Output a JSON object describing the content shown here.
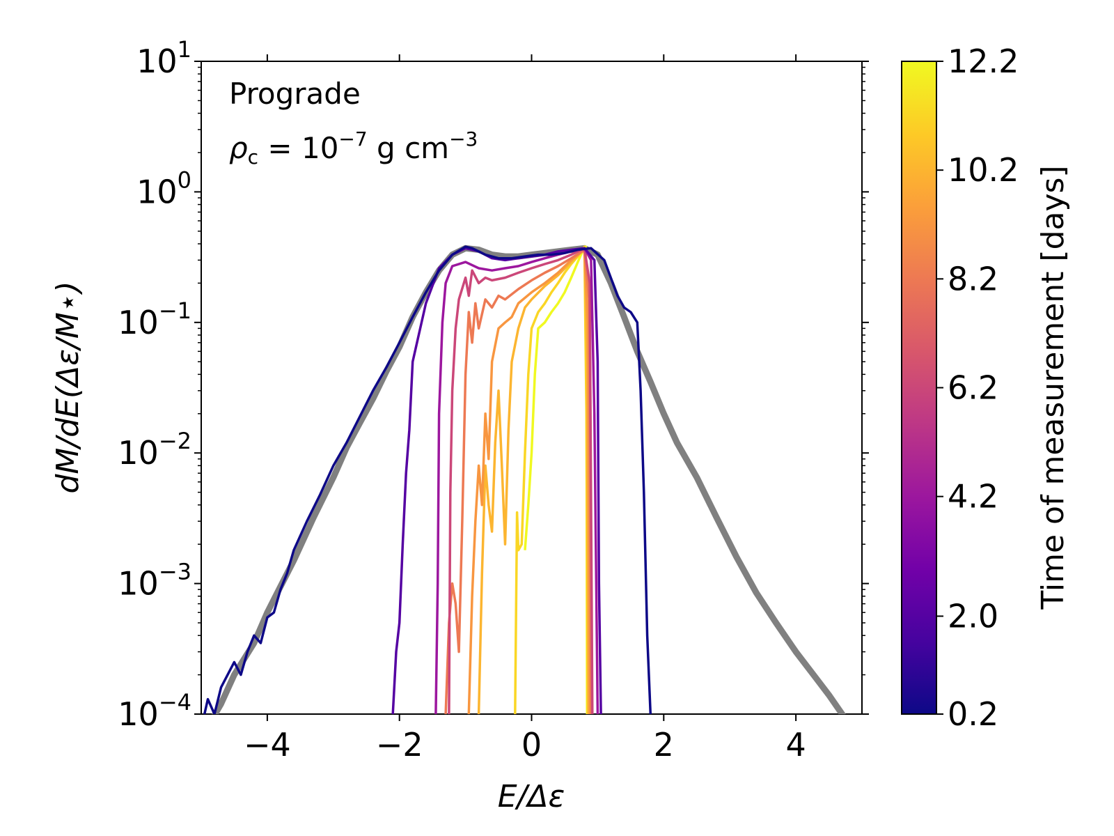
{
  "chart_data": {
    "type": "line",
    "xscale": "linear",
    "yscale": "log",
    "xlim": [
      -5,
      5
    ],
    "ylim": [
      0.0001,
      10
    ],
    "xlabel": "E/Δε",
    "ylabel": "dM/dE(Δε/M⋆)",
    "x_ticks": [
      -4,
      -2,
      0,
      2,
      4
    ],
    "x_tick_labels": [
      "−4",
      "−2",
      "0",
      "2",
      "4"
    ],
    "y_ticks": [
      {
        "exp": -4,
        "base": "10",
        "sup": "−4"
      },
      {
        "exp": -3,
        "base": "10",
        "sup": "−3"
      },
      {
        "exp": -2,
        "base": "10",
        "sup": "−2"
      },
      {
        "exp": -1,
        "base": "10",
        "sup": "−1"
      },
      {
        "exp": 0,
        "base": "10",
        "sup": "0"
      },
      {
        "exp": 1,
        "base": "10",
        "sup": "1"
      }
    ],
    "annotations": {
      "line1": "Prograde",
      "rho_symbol": "ρ",
      "rho_sub": "c",
      "rho_value": " = 10",
      "rho_exp": "−7",
      "rho_unit": " g cm",
      "rho_unit_exp": "−3"
    },
    "colorbar": {
      "label": "Time of measurement [days]",
      "min": 0.2,
      "max": 12.2,
      "ticks": [
        "0.2",
        "2.0",
        "4.2",
        "6.2",
        "8.2",
        "10.2",
        "12.2"
      ],
      "colormap": [
        "#0d0887",
        "#46039f",
        "#7201a8",
        "#9c179e",
        "#bd3786",
        "#d8576b",
        "#ed7953",
        "#fb9f3a",
        "#fdca26",
        "#f0f921"
      ]
    },
    "reference_series": {
      "name": "reference",
      "color": "#808080",
      "points": [
        [
          -4.9,
          8e-05
        ],
        [
          -4.7,
          0.00012
        ],
        [
          -4.5,
          0.0002
        ],
        [
          -4.2,
          0.00035
        ],
        [
          -4.0,
          0.0006
        ],
        [
          -3.8,
          0.00095
        ],
        [
          -3.6,
          0.0015
        ],
        [
          -3.3,
          0.0032
        ],
        [
          -3.0,
          0.0065
        ],
        [
          -2.8,
          0.011
        ],
        [
          -2.6,
          0.017
        ],
        [
          -2.4,
          0.026
        ],
        [
          -2.2,
          0.042
        ],
        [
          -2.0,
          0.065
        ],
        [
          -1.8,
          0.11
        ],
        [
          -1.6,
          0.17
        ],
        [
          -1.4,
          0.25
        ],
        [
          -1.2,
          0.33
        ],
        [
          -1.0,
          0.37
        ],
        [
          -0.8,
          0.36
        ],
        [
          -0.6,
          0.33
        ],
        [
          -0.4,
          0.32
        ],
        [
          -0.2,
          0.32
        ],
        [
          0.0,
          0.33
        ],
        [
          0.2,
          0.34
        ],
        [
          0.4,
          0.35
        ],
        [
          0.6,
          0.36
        ],
        [
          0.8,
          0.37
        ],
        [
          1.0,
          0.33
        ],
        [
          1.2,
          0.2
        ],
        [
          1.4,
          0.11
        ],
        [
          1.6,
          0.06
        ],
        [
          1.8,
          0.035
        ],
        [
          2.0,
          0.02
        ],
        [
          2.2,
          0.012
        ],
        [
          2.5,
          0.0065
        ],
        [
          2.8,
          0.0032
        ],
        [
          3.1,
          0.0016
        ],
        [
          3.4,
          0.00085
        ],
        [
          3.7,
          0.0005
        ],
        [
          4.0,
          0.0003
        ],
        [
          4.3,
          0.00019
        ],
        [
          4.5,
          0.00014
        ],
        [
          4.7,
          0.0001
        ],
        [
          4.8,
          8e-05
        ]
      ]
    },
    "series": [
      {
        "name": "0.2 days",
        "time": 0.2,
        "points": [
          [
            -4.95,
            0.0001
          ],
          [
            -4.9,
            0.00013
          ],
          [
            -4.8,
            0.0001
          ],
          [
            -4.7,
            0.00016
          ],
          [
            -4.5,
            0.00025
          ],
          [
            -4.4,
            0.0002
          ],
          [
            -4.3,
            0.0003
          ],
          [
            -4.2,
            0.0004
          ],
          [
            -4.1,
            0.00035
          ],
          [
            -4.0,
            0.00055
          ],
          [
            -3.9,
            0.0006
          ],
          [
            -3.8,
            0.0009
          ],
          [
            -3.7,
            0.0012
          ],
          [
            -3.6,
            0.0018
          ],
          [
            -3.4,
            0.003
          ],
          [
            -3.2,
            0.0048
          ],
          [
            -3.0,
            0.008
          ],
          [
            -2.8,
            0.012
          ],
          [
            -2.6,
            0.019
          ],
          [
            -2.4,
            0.03
          ],
          [
            -2.2,
            0.045
          ],
          [
            -2.0,
            0.07
          ],
          [
            -1.8,
            0.11
          ],
          [
            -1.6,
            0.17
          ],
          [
            -1.4,
            0.25
          ],
          [
            -1.2,
            0.33
          ],
          [
            -1.0,
            0.38
          ],
          [
            -0.9,
            0.37
          ],
          [
            -0.7,
            0.33
          ],
          [
            -0.5,
            0.31
          ],
          [
            -0.3,
            0.31
          ],
          [
            -0.1,
            0.32
          ],
          [
            0.1,
            0.33
          ],
          [
            0.3,
            0.33
          ],
          [
            0.5,
            0.34
          ],
          [
            0.7,
            0.36
          ],
          [
            0.9,
            0.37
          ],
          [
            1.1,
            0.3
          ],
          [
            1.3,
            0.16
          ],
          [
            1.4,
            0.13
          ],
          [
            1.5,
            0.12
          ],
          [
            1.6,
            0.1
          ],
          [
            1.65,
            0.03
          ],
          [
            1.7,
            0.005
          ],
          [
            1.75,
            0.0004
          ],
          [
            1.8,
            0.0001
          ]
        ]
      },
      {
        "name": "2.0 days",
        "time": 2.0,
        "points": [
          [
            -2.1,
            0.0001
          ],
          [
            -2.05,
            0.0003
          ],
          [
            -2.0,
            0.0005
          ],
          [
            -1.95,
            0.002
          ],
          [
            -1.9,
            0.007
          ],
          [
            -1.85,
            0.015
          ],
          [
            -1.8,
            0.05
          ],
          [
            -1.6,
            0.14
          ],
          [
            -1.4,
            0.26
          ],
          [
            -1.2,
            0.33
          ],
          [
            -1.0,
            0.37
          ],
          [
            -0.8,
            0.35
          ],
          [
            -0.6,
            0.31
          ],
          [
            -0.4,
            0.3
          ],
          [
            -0.2,
            0.31
          ],
          [
            0.0,
            0.32
          ],
          [
            0.2,
            0.33
          ],
          [
            0.4,
            0.35
          ],
          [
            0.6,
            0.36
          ],
          [
            0.8,
            0.37
          ],
          [
            0.95,
            0.3
          ],
          [
            1.0,
            0.05
          ],
          [
            1.02,
            0.001
          ],
          [
            1.05,
            0.0001
          ]
        ]
      },
      {
        "name": "4.2 days",
        "time": 4.2,
        "points": [
          [
            -1.45,
            0.0001
          ],
          [
            -1.42,
            0.001
          ],
          [
            -1.4,
            0.02
          ],
          [
            -1.35,
            0.1
          ],
          [
            -1.3,
            0.2
          ],
          [
            -1.2,
            0.27
          ],
          [
            -1.0,
            0.29
          ],
          [
            -0.8,
            0.26
          ],
          [
            -0.6,
            0.25
          ],
          [
            -0.4,
            0.26
          ],
          [
            -0.2,
            0.27
          ],
          [
            0.0,
            0.29
          ],
          [
            0.2,
            0.31
          ],
          [
            0.4,
            0.33
          ],
          [
            0.6,
            0.35
          ],
          [
            0.8,
            0.37
          ],
          [
            0.9,
            0.3
          ],
          [
            0.95,
            0.02
          ],
          [
            1.0,
            0.0001
          ]
        ]
      },
      {
        "name": "6.2 days",
        "time": 6.2,
        "points": [
          [
            -1.25,
            0.0001
          ],
          [
            -1.23,
            0.005
          ],
          [
            -1.2,
            0.03
          ],
          [
            -1.15,
            0.09
          ],
          [
            -1.1,
            0.15
          ],
          [
            -1.0,
            0.22
          ],
          [
            -0.95,
            0.16
          ],
          [
            -0.9,
            0.25
          ],
          [
            -0.8,
            0.2
          ],
          [
            -0.7,
            0.22
          ],
          [
            -0.6,
            0.21
          ],
          [
            -0.4,
            0.22
          ],
          [
            -0.2,
            0.24
          ],
          [
            0.0,
            0.26
          ],
          [
            0.2,
            0.28
          ],
          [
            0.4,
            0.3
          ],
          [
            0.6,
            0.33
          ],
          [
            0.8,
            0.37
          ],
          [
            0.88,
            0.2
          ],
          [
            0.92,
            0.0001
          ]
        ]
      },
      {
        "name": "8.2 days",
        "time": 8.2,
        "points": [
          [
            -1.3,
            0.0001
          ],
          [
            -1.25,
            0.0005
          ],
          [
            -1.2,
            0.001
          ],
          [
            -1.15,
            0.0007
          ],
          [
            -1.1,
            0.0003
          ],
          [
            -1.05,
            0.003
          ],
          [
            -1.0,
            0.04
          ],
          [
            -0.95,
            0.12
          ],
          [
            -0.9,
            0.07
          ],
          [
            -0.85,
            0.14
          ],
          [
            -0.8,
            0.09
          ],
          [
            -0.7,
            0.15
          ],
          [
            -0.6,
            0.13
          ],
          [
            -0.5,
            0.16
          ],
          [
            -0.4,
            0.15
          ],
          [
            -0.2,
            0.18
          ],
          [
            0.0,
            0.21
          ],
          [
            0.2,
            0.24
          ],
          [
            0.4,
            0.27
          ],
          [
            0.6,
            0.31
          ],
          [
            0.8,
            0.36
          ],
          [
            0.87,
            0.15
          ],
          [
            0.9,
            0.0001
          ]
        ]
      },
      {
        "name": "9.2 days",
        "time": 9.2,
        "points": [
          [
            -0.95,
            0.0001
          ],
          [
            -0.9,
            0.0008
          ],
          [
            -0.85,
            0.003
          ],
          [
            -0.8,
            0.008
          ],
          [
            -0.75,
            0.004
          ],
          [
            -0.7,
            0.02
          ],
          [
            -0.65,
            0.009
          ],
          [
            -0.6,
            0.05
          ],
          [
            -0.5,
            0.09
          ],
          [
            -0.4,
            0.1
          ],
          [
            -0.3,
            0.11
          ],
          [
            -0.2,
            0.14
          ],
          [
            0.0,
            0.17
          ],
          [
            0.2,
            0.2
          ],
          [
            0.4,
            0.24
          ],
          [
            0.6,
            0.3
          ],
          [
            0.8,
            0.36
          ],
          [
            0.85,
            0.1
          ],
          [
            0.88,
            0.0001
          ]
        ]
      },
      {
        "name": "10.2 days",
        "time": 10.2,
        "points": [
          [
            -0.8,
            0.0001
          ],
          [
            -0.75,
            0.0012
          ],
          [
            -0.7,
            0.008
          ],
          [
            -0.65,
            0.004
          ],
          [
            -0.6,
            0.0025
          ],
          [
            -0.55,
            0.012
          ],
          [
            -0.5,
            0.03
          ],
          [
            -0.45,
            0.008
          ],
          [
            -0.4,
            0.002
          ],
          [
            -0.35,
            0.015
          ],
          [
            -0.3,
            0.05
          ],
          [
            -0.2,
            0.09
          ],
          [
            -0.1,
            0.13
          ],
          [
            0.0,
            0.15
          ],
          [
            0.2,
            0.19
          ],
          [
            0.4,
            0.23
          ],
          [
            0.6,
            0.29
          ],
          [
            0.8,
            0.37
          ],
          [
            0.84,
            0.05
          ],
          [
            0.86,
            0.0001
          ]
        ]
      },
      {
        "name": "11.2 days",
        "time": 11.2,
        "points": [
          [
            -0.25,
            0.0001
          ],
          [
            -0.22,
            0.0035
          ],
          [
            -0.2,
            0.0018
          ],
          [
            -0.15,
            0.002
          ],
          [
            -0.1,
            0.01
          ],
          [
            -0.05,
            0.04
          ],
          [
            0.0,
            0.09
          ],
          [
            0.1,
            0.12
          ],
          [
            0.2,
            0.14
          ],
          [
            0.3,
            0.17
          ],
          [
            0.4,
            0.2
          ],
          [
            0.5,
            0.24
          ],
          [
            0.6,
            0.28
          ],
          [
            0.7,
            0.32
          ],
          [
            0.8,
            0.38
          ],
          [
            0.83,
            0.02
          ],
          [
            0.85,
            0.0001
          ]
        ]
      },
      {
        "name": "12.2 days",
        "time": 12.2,
        "points": [
          [
            -0.1,
            0.0018
          ],
          [
            -0.05,
            0.004
          ],
          [
            0.0,
            0.01
          ],
          [
            0.05,
            0.04
          ],
          [
            0.1,
            0.09
          ],
          [
            0.2,
            0.1
          ],
          [
            0.3,
            0.12
          ],
          [
            0.4,
            0.14
          ],
          [
            0.5,
            0.17
          ],
          [
            0.6,
            0.22
          ],
          [
            0.7,
            0.29
          ],
          [
            0.78,
            0.36
          ],
          [
            0.82,
            0.38
          ],
          [
            0.83,
            0.05
          ],
          [
            0.84,
            0.0001
          ]
        ]
      }
    ]
  }
}
